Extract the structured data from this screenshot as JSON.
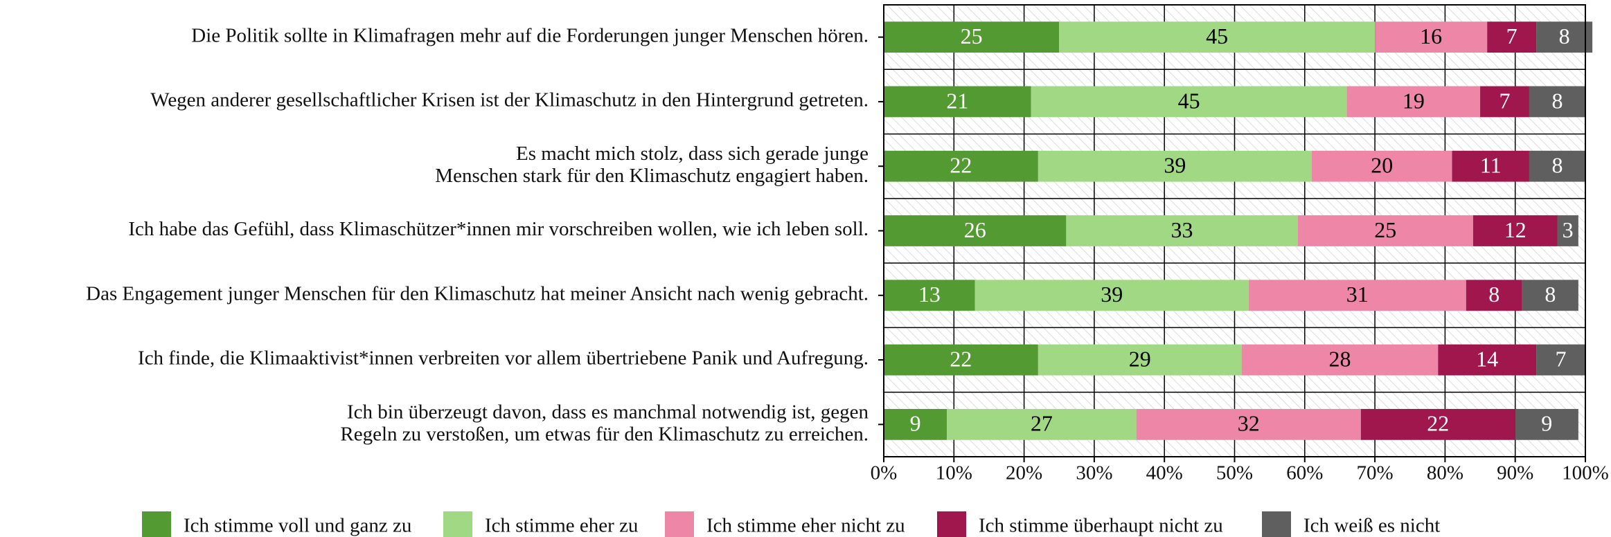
{
  "chart_data": {
    "type": "stacked-barh",
    "categories": [
      "Die Politik sollte in Klimafragen mehr auf die Forderungen junger Menschen hören.",
      "Wegen anderer gesellschaftlicher Krisen ist der Klimaschutz in den Hintergrund getreten.",
      "Es macht mich stolz, dass sich gerade junge\nMenschen stark für den Klimaschutz engagiert haben.",
      "Ich habe das Gefühl, dass Klimaschützer*innen mir vorschreiben wollen, wie ich leben soll.",
      "Das Engagement junger Menschen für den Klimaschutz hat meiner Ansicht nach wenig gebracht.",
      "Ich finde, die Klimaaktivist*innen verbreiten vor allem übertriebene Panik und Aufregung.",
      "Ich bin überzeugt davon, dass es manchmal notwendig ist, gegen\nRegeln zu verstoßen, um etwas für den Klimaschutz zu erreichen."
    ],
    "series": [
      {
        "name": "Ich stimme voll und ganz zu",
        "color": "#529a31",
        "label_color": "#ffffff",
        "values": [
          25,
          21,
          22,
          26,
          13,
          22,
          9
        ]
      },
      {
        "name": "Ich stimme eher zu",
        "color": "#a0d884",
        "label_color": "#000000",
        "values": [
          45,
          45,
          39,
          33,
          39,
          29,
          27
        ]
      },
      {
        "name": "Ich stimme eher nicht zu",
        "color": "#ee86a8",
        "label_color": "#000000",
        "values": [
          16,
          19,
          20,
          25,
          31,
          28,
          32
        ]
      },
      {
        "name": "Ich stimme überhaupt nicht zu",
        "color": "#a0174e",
        "label_color": "#ffffff",
        "values": [
          7,
          7,
          11,
          12,
          8,
          14,
          22
        ]
      },
      {
        "name": "Ich weiß es nicht",
        "color": "#5f5f5f",
        "label_color": "#ffffff",
        "values": [
          8,
          8,
          8,
          3,
          8,
          7,
          9
        ]
      }
    ],
    "xlim": [
      0,
      100
    ],
    "xticks": [
      {
        "value": 0,
        "label": "0%"
      },
      {
        "value": 10,
        "label": "10%"
      },
      {
        "value": 20,
        "label": "20%"
      },
      {
        "value": 30,
        "label": "30%"
      },
      {
        "value": 40,
        "label": "40%"
      },
      {
        "value": 50,
        "label": "50%"
      },
      {
        "value": 60,
        "label": "60%"
      },
      {
        "value": 70,
        "label": "70%"
      },
      {
        "value": 80,
        "label": "80%"
      },
      {
        "value": 90,
        "label": "90%"
      },
      {
        "value": 100,
        "label": "100%"
      }
    ],
    "grid": true,
    "legend": "bottom"
  }
}
